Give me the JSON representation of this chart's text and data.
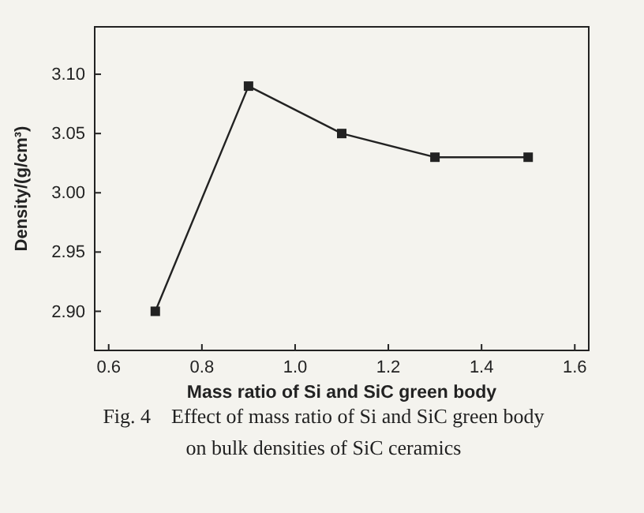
{
  "chart_data": {
    "type": "line",
    "xlabel": "Mass ratio of Si and SiC green body",
    "ylabel": "Density/(g/cm³)",
    "x": [
      0.7,
      0.9,
      1.1,
      1.3,
      1.5
    ],
    "series": [
      {
        "color": "#222222",
        "values": [
          2.9,
          3.09,
          3.05,
          3.03,
          3.03
        ]
      }
    ],
    "xlim": [
      0.57,
      1.63
    ],
    "ylim": [
      2.867,
      3.14
    ],
    "xticks": [
      {
        "value": 0.6,
        "label": "0.6"
      },
      {
        "value": 0.8,
        "label": "0.8"
      },
      {
        "value": 1.0,
        "label": "1.0"
      },
      {
        "value": 1.2,
        "label": "1.2"
      },
      {
        "value": 1.4,
        "label": "1.4"
      },
      {
        "value": 1.6,
        "label": "1.6"
      }
    ],
    "yticks": [
      {
        "value": 2.9,
        "label": "2.90"
      },
      {
        "value": 2.95,
        "label": "2.95"
      },
      {
        "value": 3.0,
        "label": "3.00"
      },
      {
        "value": 3.05,
        "label": "3.05"
      },
      {
        "value": 3.1,
        "label": "3.10"
      }
    ],
    "marker": "square",
    "line_style": "solid",
    "grid": false,
    "annotations": [
      "Fig. 4    Effect of mass ratio of Si and SiC green body",
      "on bulk densities of SiC ceramics"
    ]
  }
}
